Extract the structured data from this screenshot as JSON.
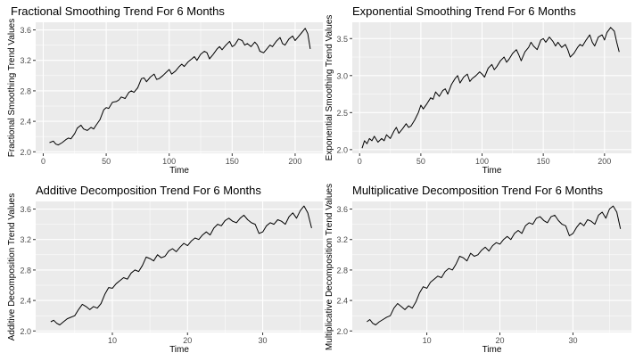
{
  "chart_data": [
    {
      "type": "line",
      "title": "Fractional Smoothing Trend For 6 Months",
      "xlabel": "Time",
      "ylabel": "Fractional Smoothing Trend Values",
      "xlim": [
        -6,
        222
      ],
      "ylim": [
        1.98,
        3.7
      ],
      "x_ticks": [
        0,
        50,
        100,
        150,
        200
      ],
      "y_ticks": [
        2.0,
        2.4,
        2.8,
        3.2,
        3.6
      ],
      "y_tick_labels": [
        "2.0",
        "2.4",
        "2.8",
        "3.2",
        "3.6"
      ],
      "grid": true,
      "x": [
        5,
        8,
        10,
        12,
        15,
        18,
        20,
        22,
        25,
        27,
        30,
        32,
        35,
        38,
        40,
        42,
        45,
        48,
        50,
        52,
        55,
        58,
        60,
        62,
        65,
        68,
        70,
        72,
        75,
        78,
        80,
        82,
        85,
        88,
        90,
        92,
        95,
        98,
        100,
        102,
        105,
        108,
        110,
        112,
        115,
        118,
        120,
        122,
        125,
        128,
        130,
        132,
        135,
        138,
        140,
        142,
        145,
        148,
        150,
        152,
        155,
        158,
        160,
        162,
        165,
        168,
        170,
        172,
        175,
        178,
        180,
        182,
        185,
        188,
        190,
        192,
        195,
        198,
        200,
        202,
        205,
        208,
        210,
        212
      ],
      "y": [
        2.12,
        2.14,
        2.1,
        2.09,
        2.12,
        2.16,
        2.18,
        2.17,
        2.24,
        2.31,
        2.35,
        2.3,
        2.28,
        2.32,
        2.3,
        2.35,
        2.42,
        2.55,
        2.58,
        2.57,
        2.65,
        2.66,
        2.68,
        2.72,
        2.7,
        2.78,
        2.8,
        2.78,
        2.84,
        2.96,
        2.97,
        2.92,
        2.98,
        3.02,
        2.95,
        2.96,
        3.0,
        3.05,
        3.08,
        3.02,
        3.06,
        3.12,
        3.15,
        3.12,
        3.18,
        3.22,
        3.25,
        3.2,
        3.28,
        3.32,
        3.3,
        3.22,
        3.28,
        3.35,
        3.38,
        3.34,
        3.4,
        3.45,
        3.38,
        3.4,
        3.48,
        3.46,
        3.4,
        3.42,
        3.38,
        3.44,
        3.4,
        3.32,
        3.3,
        3.36,
        3.4,
        3.38,
        3.45,
        3.5,
        3.42,
        3.4,
        3.48,
        3.52,
        3.46,
        3.5,
        3.56,
        3.62,
        3.55,
        3.35
      ]
    },
    {
      "type": "line",
      "title": "Exponential Smoothing Trend For 6 Months",
      "xlabel": "Time",
      "ylabel": "Exponential Smoothing Trend Values",
      "xlim": [
        -6,
        222
      ],
      "ylim": [
        1.95,
        3.72
      ],
      "x_ticks": [
        0,
        50,
        100,
        150,
        200
      ],
      "y_ticks": [
        2.0,
        2.5,
        3.0,
        3.5
      ],
      "y_tick_labels": [
        "2.0",
        "2.5",
        "3.0",
        "3.5"
      ],
      "grid": true,
      "x": [
        2,
        4,
        6,
        8,
        10,
        12,
        15,
        18,
        20,
        22,
        25,
        28,
        30,
        32,
        35,
        38,
        40,
        42,
        45,
        48,
        50,
        52,
        55,
        58,
        60,
        62,
        65,
        68,
        70,
        72,
        75,
        78,
        80,
        82,
        85,
        88,
        90,
        92,
        95,
        98,
        100,
        102,
        105,
        108,
        110,
        112,
        115,
        118,
        120,
        122,
        125,
        128,
        130,
        132,
        135,
        138,
        140,
        142,
        145,
        148,
        150,
        152,
        155,
        158,
        160,
        162,
        165,
        168,
        170,
        172,
        175,
        178,
        180,
        182,
        185,
        188,
        190,
        192,
        195,
        198,
        200,
        202,
        205,
        208,
        210,
        212
      ],
      "y": [
        2.02,
        2.12,
        2.08,
        2.15,
        2.12,
        2.18,
        2.1,
        2.15,
        2.12,
        2.2,
        2.15,
        2.25,
        2.3,
        2.22,
        2.28,
        2.35,
        2.3,
        2.32,
        2.4,
        2.5,
        2.6,
        2.55,
        2.62,
        2.7,
        2.68,
        2.78,
        2.72,
        2.8,
        2.82,
        2.75,
        2.88,
        2.96,
        3.0,
        2.9,
        2.98,
        3.02,
        2.92,
        2.96,
        3.0,
        3.05,
        3.02,
        2.98,
        3.1,
        3.15,
        3.08,
        3.12,
        3.2,
        3.25,
        3.18,
        3.22,
        3.3,
        3.35,
        3.28,
        3.2,
        3.32,
        3.38,
        3.45,
        3.4,
        3.35,
        3.48,
        3.5,
        3.45,
        3.52,
        3.46,
        3.4,
        3.45,
        3.38,
        3.42,
        3.35,
        3.25,
        3.3,
        3.38,
        3.42,
        3.4,
        3.48,
        3.55,
        3.45,
        3.4,
        3.52,
        3.55,
        3.48,
        3.58,
        3.65,
        3.6,
        3.45,
        3.32
      ]
    },
    {
      "type": "line",
      "title": "Additive Decomposition Trend For 6 Months",
      "xlabel": "Time",
      "ylabel": "Additive Decomposition Trend Values",
      "xlim": [
        -0.2,
        38
      ],
      "ylim": [
        1.98,
        3.7
      ],
      "x_ticks": [
        10,
        20,
        30
      ],
      "y_ticks": [
        2.0,
        2.4,
        2.8,
        3.2,
        3.6
      ],
      "y_tick_labels": [
        "2.0",
        "2.4",
        "2.8",
        "3.2",
        "3.6"
      ],
      "grid": true,
      "x": [
        1.8,
        2.2,
        2.6,
        3.0,
        3.5,
        4.0,
        4.5,
        5.0,
        5.5,
        6.0,
        6.5,
        7.0,
        7.5,
        8.0,
        8.5,
        9.0,
        9.5,
        10.0,
        10.5,
        11.0,
        11.5,
        12.0,
        12.5,
        13.0,
        13.5,
        14.0,
        14.5,
        15.0,
        15.5,
        16.0,
        16.5,
        17.0,
        17.5,
        18.0,
        18.5,
        19.0,
        19.5,
        20.0,
        20.5,
        21.0,
        21.5,
        22.0,
        22.5,
        23.0,
        23.5,
        24.0,
        24.5,
        25.0,
        25.5,
        26.0,
        26.5,
        27.0,
        27.5,
        28.0,
        28.5,
        29.0,
        29.5,
        30.0,
        30.5,
        31.0,
        31.5,
        32.0,
        32.5,
        33.0,
        33.5,
        34.0,
        34.5,
        35.0,
        35.5,
        36.0,
        36.5
      ],
      "y": [
        2.12,
        2.14,
        2.1,
        2.08,
        2.12,
        2.16,
        2.18,
        2.2,
        2.28,
        2.35,
        2.32,
        2.28,
        2.32,
        2.3,
        2.36,
        2.48,
        2.57,
        2.56,
        2.62,
        2.66,
        2.7,
        2.68,
        2.76,
        2.8,
        2.78,
        2.86,
        2.97,
        2.95,
        2.92,
        3.0,
        2.96,
        2.98,
        3.05,
        3.08,
        3.04,
        3.1,
        3.15,
        3.12,
        3.18,
        3.22,
        3.2,
        3.26,
        3.3,
        3.26,
        3.35,
        3.4,
        3.38,
        3.45,
        3.48,
        3.44,
        3.42,
        3.48,
        3.52,
        3.46,
        3.42,
        3.4,
        3.28,
        3.3,
        3.38,
        3.42,
        3.4,
        3.46,
        3.44,
        3.4,
        3.5,
        3.55,
        3.48,
        3.58,
        3.64,
        3.55,
        3.35
      ]
    },
    {
      "type": "line",
      "title": "Multiplicative Decomposition Trend For 6 Months",
      "xlabel": "Time",
      "ylabel": "Multiplicative Decomposition Trend Values",
      "xlim": [
        -0.2,
        38
      ],
      "ylim": [
        1.98,
        3.7
      ],
      "x_ticks": [
        10,
        20,
        30
      ],
      "y_ticks": [
        2.0,
        2.4,
        2.8,
        3.2,
        3.6
      ],
      "y_tick_labels": [
        "2.0",
        "2.4",
        "2.8",
        "3.2",
        "3.6"
      ],
      "grid": true,
      "x": [
        1.8,
        2.2,
        2.6,
        3.0,
        3.5,
        4.0,
        4.5,
        5.0,
        5.5,
        6.0,
        6.5,
        7.0,
        7.5,
        8.0,
        8.5,
        9.0,
        9.5,
        10.0,
        10.5,
        11.0,
        11.5,
        12.0,
        12.5,
        13.0,
        13.5,
        14.0,
        14.5,
        15.0,
        15.5,
        16.0,
        16.5,
        17.0,
        17.5,
        18.0,
        18.5,
        19.0,
        19.5,
        20.0,
        20.5,
        21.0,
        21.5,
        22.0,
        22.5,
        23.0,
        23.5,
        24.0,
        24.5,
        25.0,
        25.5,
        26.0,
        26.5,
        27.0,
        27.5,
        28.0,
        28.5,
        29.0,
        29.5,
        30.0,
        30.5,
        31.0,
        31.5,
        32.0,
        32.5,
        33.0,
        33.5,
        34.0,
        34.5,
        35.0,
        35.5,
        36.0,
        36.5
      ],
      "y": [
        2.12,
        2.15,
        2.1,
        2.08,
        2.12,
        2.15,
        2.18,
        2.2,
        2.3,
        2.36,
        2.32,
        2.28,
        2.33,
        2.3,
        2.38,
        2.5,
        2.58,
        2.56,
        2.64,
        2.68,
        2.72,
        2.7,
        2.78,
        2.82,
        2.8,
        2.88,
        2.98,
        2.96,
        2.92,
        3.02,
        2.98,
        3.0,
        3.06,
        3.1,
        3.05,
        3.12,
        3.16,
        3.14,
        3.2,
        3.24,
        3.2,
        3.28,
        3.32,
        3.28,
        3.38,
        3.42,
        3.4,
        3.48,
        3.5,
        3.45,
        3.42,
        3.5,
        3.52,
        3.45,
        3.4,
        3.38,
        3.25,
        3.28,
        3.36,
        3.42,
        3.38,
        3.46,
        3.44,
        3.4,
        3.52,
        3.56,
        3.48,
        3.6,
        3.64,
        3.56,
        3.34
      ]
    }
  ]
}
